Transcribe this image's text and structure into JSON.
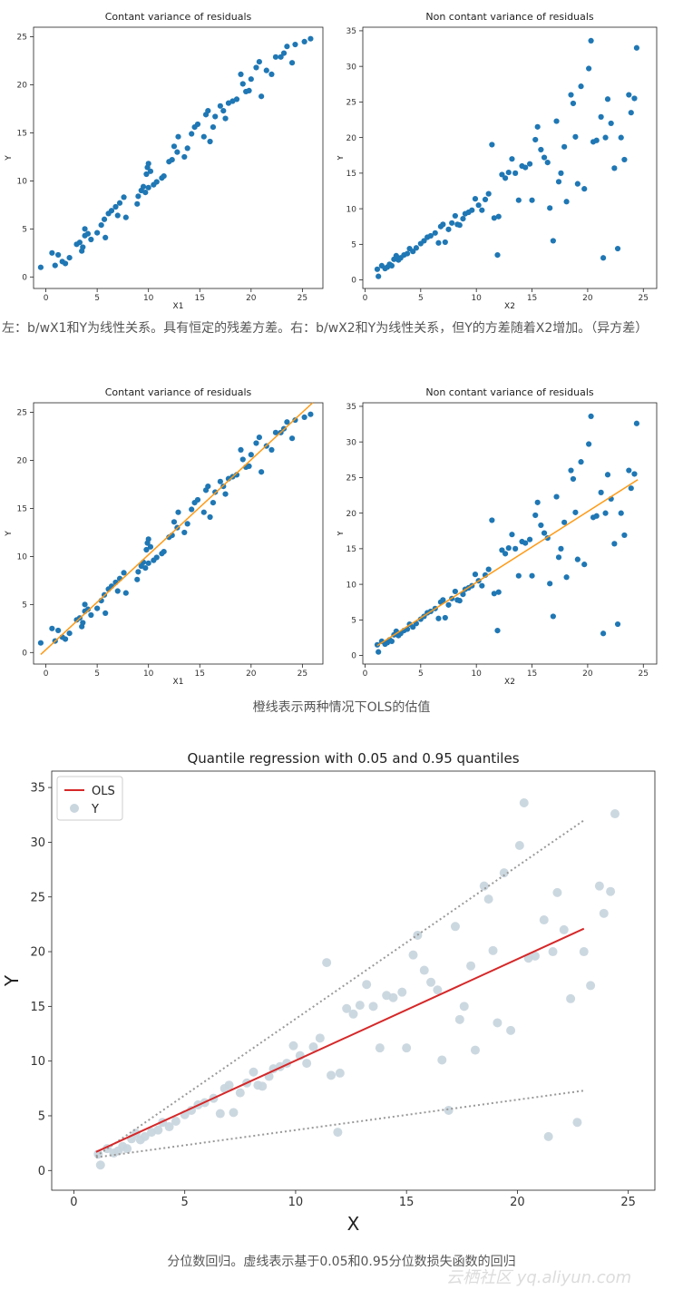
{
  "captions": {
    "first": "左：b/wX1和Y为线性关系。具有恒定的残差方差。右：b/wX2和Y为线性关系，但Y的方差随着X2增加。（异方差）",
    "second": "橙线表示两种情况下OLS的估值",
    "third": "分位数回归。虚线表示基于0.05和0.95分位数损失函数的回归"
  },
  "watermark": "云栖社区 yq.aliyun.com",
  "colors": {
    "dots": "#1f77b4",
    "ols_orange": "#ff9914",
    "ols_red": "#d62728",
    "quantile_dotted": "#999999",
    "light_dots": "#c9d6de"
  },
  "chart_data": [
    {
      "id": "top-left",
      "type": "scatter",
      "title": "Contant variance of residuals",
      "xlabel": "X1",
      "ylabel": "Y",
      "xlim": [
        -1.2,
        27
      ],
      "ylim": [
        -1.2,
        26
      ],
      "xticks": [
        0,
        5,
        10,
        15,
        20,
        25
      ],
      "yticks": [
        0,
        5,
        10,
        15,
        20,
        25
      ],
      "points": [
        [
          -0.5,
          1
        ],
        [
          0.6,
          2.5
        ],
        [
          0.9,
          1.2
        ],
        [
          1.2,
          2.3
        ],
        [
          1.6,
          1.6
        ],
        [
          1.9,
          1.4
        ],
        [
          2.3,
          2
        ],
        [
          3,
          3.4
        ],
        [
          3.3,
          3.6
        ],
        [
          3.5,
          2.7
        ],
        [
          3.6,
          3.1
        ],
        [
          3.8,
          5
        ],
        [
          3.8,
          4.3
        ],
        [
          4.1,
          4.5
        ],
        [
          4.4,
          3.9
        ],
        [
          5,
          4.6
        ],
        [
          5.4,
          5.4
        ],
        [
          5.7,
          6
        ],
        [
          5.8,
          4.1
        ],
        [
          6.1,
          6.6
        ],
        [
          6.4,
          6.9
        ],
        [
          6.8,
          7.3
        ],
        [
          7,
          6.4
        ],
        [
          7.2,
          7.7
        ],
        [
          7.6,
          8.3
        ],
        [
          7.8,
          6.2
        ],
        [
          8.9,
          7.6
        ],
        [
          9,
          8.4
        ],
        [
          9.3,
          9
        ],
        [
          9.5,
          9.4
        ],
        [
          9.7,
          8.8
        ],
        [
          9.8,
          10.7
        ],
        [
          9.9,
          11.4
        ],
        [
          10,
          11.8
        ],
        [
          10,
          9.3
        ],
        [
          10.2,
          11
        ],
        [
          10.5,
          9.6
        ],
        [
          10.8,
          9.9
        ],
        [
          11.3,
          10.3
        ],
        [
          11.5,
          10.5
        ],
        [
          12,
          12
        ],
        [
          12.3,
          12.2
        ],
        [
          12.5,
          13.6
        ],
        [
          12.8,
          13
        ],
        [
          12.9,
          14.6
        ],
        [
          13.5,
          12.5
        ],
        [
          13.8,
          13.4
        ],
        [
          14.2,
          14.9
        ],
        [
          14.5,
          15.6
        ],
        [
          14.8,
          15.9
        ],
        [
          15.4,
          14.6
        ],
        [
          15.6,
          16.9
        ],
        [
          15.8,
          17.3
        ],
        [
          16,
          14.1
        ],
        [
          16.3,
          15.6
        ],
        [
          16.5,
          16.7
        ],
        [
          17,
          17.8
        ],
        [
          17.3,
          17.3
        ],
        [
          17.5,
          16.5
        ],
        [
          17.8,
          18.1
        ],
        [
          18.2,
          18.3
        ],
        [
          18.6,
          18.5
        ],
        [
          19,
          21.1
        ],
        [
          19.2,
          20.1
        ],
        [
          19.5,
          19.3
        ],
        [
          19.8,
          19.4
        ],
        [
          20,
          20.6
        ],
        [
          20.5,
          21.8
        ],
        [
          20.8,
          22.4
        ],
        [
          21,
          18.8
        ],
        [
          21.5,
          21.5
        ],
        [
          22,
          21.1
        ],
        [
          22.4,
          22.9
        ],
        [
          22.9,
          22.9
        ],
        [
          23.2,
          23.3
        ],
        [
          23.5,
          24
        ],
        [
          24,
          22.3
        ],
        [
          24.3,
          24.2
        ],
        [
          25.2,
          24.5
        ],
        [
          25.8,
          24.8
        ]
      ]
    },
    {
      "id": "top-right",
      "type": "scatter",
      "title": "Non contant variance of residuals",
      "xlabel": "X2",
      "ylabel": "Y",
      "xlim": [
        -0.2,
        26.2
      ],
      "ylim": [
        -1.2,
        35.5
      ],
      "xticks": [
        0,
        5,
        10,
        15,
        20,
        25
      ],
      "yticks": [
        0,
        5,
        10,
        15,
        20,
        25,
        30,
        35
      ],
      "points": [
        [
          1.1,
          1.5
        ],
        [
          1.2,
          0.5
        ],
        [
          1.5,
          2
        ],
        [
          1.8,
          1.6
        ],
        [
          2,
          1.8
        ],
        [
          2.2,
          2.2
        ],
        [
          2.4,
          2
        ],
        [
          2.6,
          2.9
        ],
        [
          2.8,
          3.4
        ],
        [
          3,
          2.8
        ],
        [
          3.2,
          3.1
        ],
        [
          3.5,
          3.5
        ],
        [
          3.8,
          3.7
        ],
        [
          4,
          4.4
        ],
        [
          4.3,
          4
        ],
        [
          4.6,
          4.5
        ],
        [
          5,
          5.1
        ],
        [
          5.3,
          5.5
        ],
        [
          5.6,
          6
        ],
        [
          5.9,
          6.2
        ],
        [
          6.3,
          6.6
        ],
        [
          6.6,
          5.2
        ],
        [
          6.8,
          7.5
        ],
        [
          7,
          7.8
        ],
        [
          7.2,
          5.3
        ],
        [
          7.5,
          7.1
        ],
        [
          7.8,
          8
        ],
        [
          8.1,
          9
        ],
        [
          8.3,
          7.8
        ],
        [
          8.5,
          7.7
        ],
        [
          8.8,
          8.6
        ],
        [
          9,
          9.3
        ],
        [
          9.3,
          9.5
        ],
        [
          9.6,
          9.8
        ],
        [
          9.9,
          11.4
        ],
        [
          10.2,
          10.5
        ],
        [
          10.5,
          9.8
        ],
        [
          10.8,
          11.3
        ],
        [
          11.1,
          12.1
        ],
        [
          11.4,
          19
        ],
        [
          11.6,
          8.7
        ],
        [
          11.9,
          3.5
        ],
        [
          12,
          8.9
        ],
        [
          12.3,
          14.8
        ],
        [
          12.6,
          14.3
        ],
        [
          12.9,
          15.1
        ],
        [
          13.2,
          17
        ],
        [
          13.5,
          15
        ],
        [
          13.8,
          11.2
        ],
        [
          14.1,
          16
        ],
        [
          14.4,
          15.8
        ],
        [
          14.8,
          16.3
        ],
        [
          15,
          11.2
        ],
        [
          15.3,
          19.7
        ],
        [
          15.5,
          21.5
        ],
        [
          15.8,
          18.3
        ],
        [
          16.1,
          17.2
        ],
        [
          16.4,
          16.5
        ],
        [
          16.6,
          10.1
        ],
        [
          16.9,
          5.5
        ],
        [
          17.2,
          22.3
        ],
        [
          17.4,
          13.8
        ],
        [
          17.6,
          15
        ],
        [
          17.9,
          18.7
        ],
        [
          18.1,
          11
        ],
        [
          18.5,
          26
        ],
        [
          18.7,
          24.8
        ],
        [
          18.9,
          20.1
        ],
        [
          19.1,
          13.5
        ],
        [
          19.4,
          27.2
        ],
        [
          19.7,
          12.8
        ],
        [
          20.1,
          29.7
        ],
        [
          20.3,
          33.6
        ],
        [
          20.5,
          19.4
        ],
        [
          20.8,
          19.6
        ],
        [
          21.2,
          22.9
        ],
        [
          21.4,
          3.1
        ],
        [
          21.6,
          20
        ],
        [
          21.8,
          25.4
        ],
        [
          22.1,
          22
        ],
        [
          22.4,
          15.7
        ],
        [
          22.7,
          4.4
        ],
        [
          23,
          20
        ],
        [
          23.3,
          16.9
        ],
        [
          23.7,
          26
        ],
        [
          23.9,
          23.5
        ],
        [
          24.2,
          25.5
        ],
        [
          24.4,
          32.6
        ]
      ]
    },
    {
      "id": "middle-left",
      "type": "scatter",
      "title": "Contant variance of residuals",
      "xlabel": "X1",
      "ylabel": "Y",
      "xlim": [
        -1.2,
        27
      ],
      "ylim": [
        -1.2,
        26
      ],
      "xticks": [
        0,
        5,
        10,
        15,
        20,
        25
      ],
      "yticks": [
        0,
        5,
        10,
        15,
        20,
        25
      ],
      "fit_line": {
        "x": [
          -0.5,
          26
        ],
        "y": [
          -0.2,
          26
        ]
      },
      "points_ref": "top-left"
    },
    {
      "id": "middle-right",
      "type": "scatter",
      "title": "Non contant variance of residuals",
      "xlabel": "X2",
      "ylabel": "Y",
      "xlim": [
        -0.2,
        26.2
      ],
      "ylim": [
        -1.2,
        35.5
      ],
      "xticks": [
        0,
        5,
        10,
        15,
        20,
        25
      ],
      "yticks": [
        0,
        5,
        10,
        15,
        20,
        25,
        30,
        35
      ],
      "fit_line": {
        "x": [
          1.1,
          24.5
        ],
        "y": [
          1.4,
          24.7
        ]
      },
      "points_ref": "top-right"
    },
    {
      "id": "bottom",
      "type": "scatter",
      "title": "Quantile regression with 0.05 and 0.95 quantiles",
      "xlabel": "X",
      "ylabel": "Y",
      "xlim": [
        -1,
        26.2
      ],
      "ylim": [
        -1.8,
        36.5
      ],
      "xticks": [
        0,
        5,
        10,
        15,
        20,
        25
      ],
      "yticks": [
        0,
        5,
        10,
        15,
        20,
        25,
        30,
        35
      ],
      "legend": {
        "position": "top-left",
        "entries": [
          "OLS",
          "Y"
        ]
      },
      "ols_line": {
        "x": [
          1,
          23
        ],
        "y": [
          1.7,
          22.1
        ]
      },
      "quantile_lines": [
        {
          "x": [
            1,
            23
          ],
          "y": [
            1.3,
            32
          ]
        },
        {
          "x": [
            1,
            23
          ],
          "y": [
            1.2,
            7.3
          ]
        }
      ],
      "points_ref": "top-right"
    }
  ]
}
